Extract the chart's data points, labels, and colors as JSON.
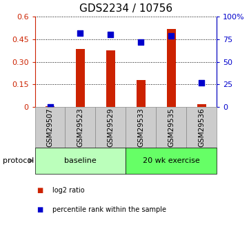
{
  "title": "GDS2234 / 10756",
  "samples": [
    "GSM29507",
    "GSM29523",
    "GSM29529",
    "GSM29533",
    "GSM29535",
    "GSM29536"
  ],
  "log2_ratio": [
    0.005,
    0.385,
    0.375,
    0.18,
    0.52,
    0.02
  ],
  "percentile_rank": [
    0.0,
    82.0,
    80.0,
    72.0,
    79.0,
    27.0
  ],
  "bar_color": "#cc2200",
  "dot_color": "#0000cc",
  "left_ylim": [
    0,
    0.6
  ],
  "left_yticks": [
    0,
    0.15,
    0.3,
    0.45,
    0.6
  ],
  "left_yticklabels": [
    "0",
    "0.15",
    "0.30",
    "0.45",
    "0.6"
  ],
  "right_ylim": [
    0,
    100
  ],
  "right_yticks": [
    0,
    25,
    50,
    75,
    100
  ],
  "right_yticklabels": [
    "0",
    "25",
    "50",
    "75",
    "100%"
  ],
  "protocol_groups": [
    {
      "label": "baseline",
      "start": 0,
      "end": 3,
      "color": "#bbffbb"
    },
    {
      "label": "20 wk exercise",
      "start": 3,
      "end": 6,
      "color": "#66ff66"
    }
  ],
  "protocol_label": "protocol",
  "legend_items": [
    {
      "label": "log2 ratio",
      "color": "#cc2200"
    },
    {
      "label": "percentile rank within the sample",
      "color": "#0000cc"
    }
  ],
  "background_color": "#ffffff",
  "bar_width": 0.3,
  "dot_size": 30,
  "title_fontsize": 11,
  "tick_fontsize": 8,
  "label_fontsize": 8,
  "sample_box_color": "#cccccc",
  "sample_box_edge": "#888888"
}
